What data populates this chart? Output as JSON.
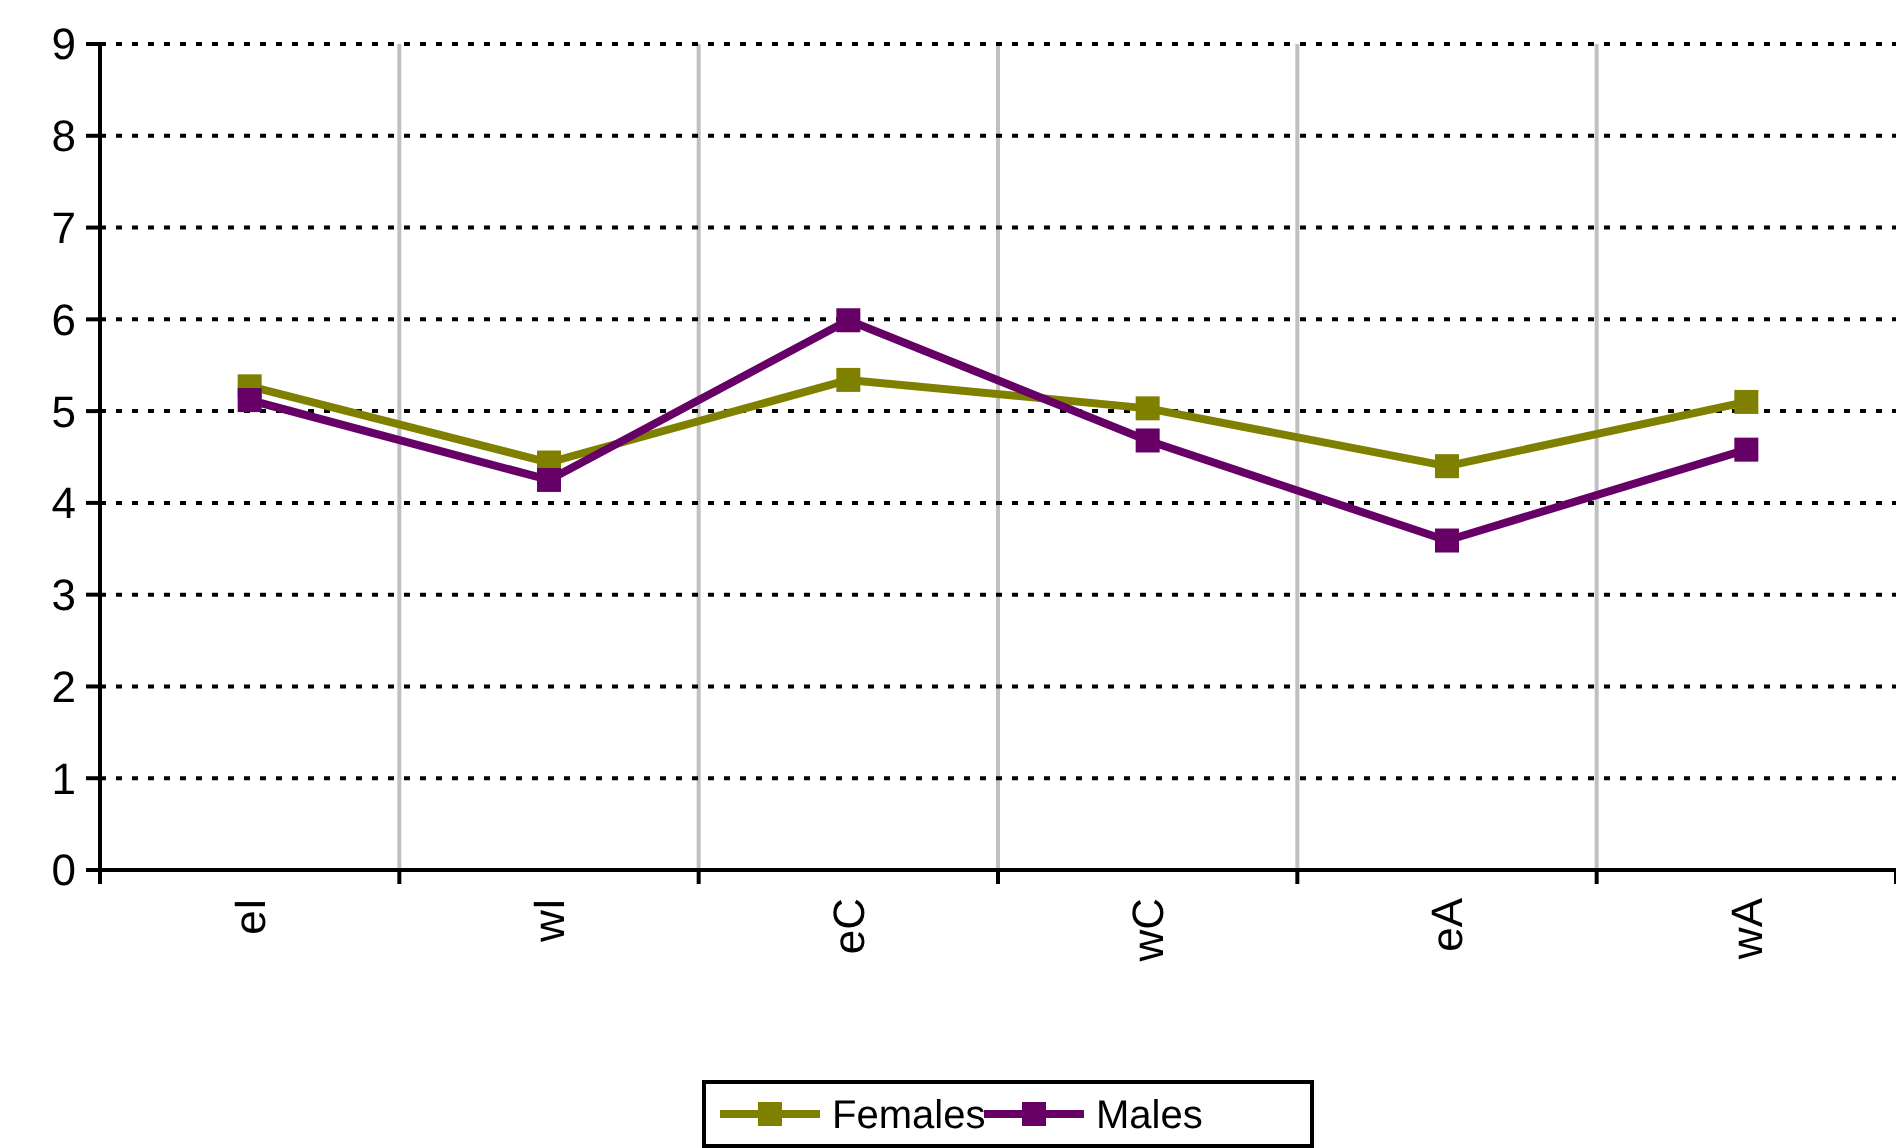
{
  "chart_data": {
    "type": "line",
    "categories": [
      "eI",
      "wI",
      "eC",
      "wC",
      "eA",
      "wA"
    ],
    "series": [
      {
        "name": "Females",
        "color": "#808000",
        "values": [
          5.27,
          4.44,
          5.34,
          5.03,
          4.4,
          5.1
        ]
      },
      {
        "name": "Males",
        "color": "#660066",
        "values": [
          5.12,
          4.25,
          5.99,
          4.68,
          3.59,
          4.58
        ]
      }
    ],
    "ylim": [
      0,
      9
    ],
    "yticks": [
      0,
      1,
      2,
      3,
      4,
      5,
      6,
      7,
      8,
      9
    ],
    "grid": true,
    "legend": "bottom",
    "marker": "square",
    "line_style": "solid"
  }
}
